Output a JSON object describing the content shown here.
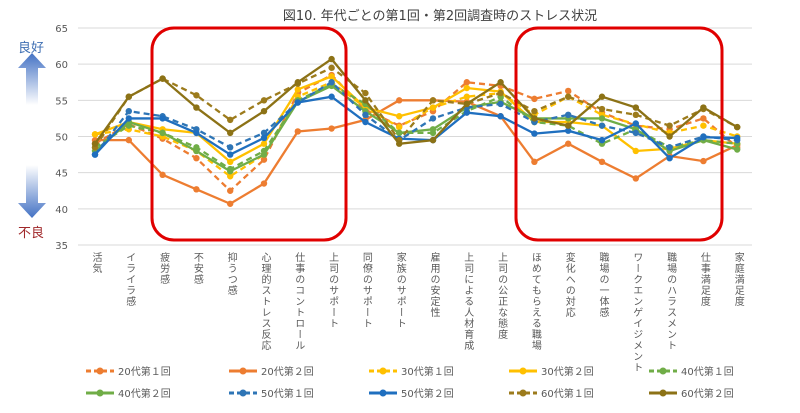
{
  "chart_data": {
    "type": "line",
    "title": "図10. 年代ごとの第1回・第2回調査時のストレス状況",
    "xlabel": "",
    "ylabel": "",
    "ylim": [
      35,
      65
    ],
    "yticks": [
      35,
      40,
      45,
      50,
      55,
      60,
      65
    ],
    "grid": true,
    "legend_position": "bottom",
    "annotations": {
      "good": "良好",
      "bad": "不良"
    },
    "categories": [
      "活気",
      "イライラ感",
      "疲労感",
      "不安感",
      "抑うつ感",
      "心理的ストレス反応",
      "仕事のコントロール",
      "上司のサポート",
      "同僚のサポート",
      "家族のサポート",
      "雇用の安定性",
      "上司による人材育成",
      "上司の公正な態度",
      "ほめてもらえる職場",
      "変化への対応",
      "職場の一体感",
      "ワークエンゲイジメント",
      "職場のハラスメント",
      "仕事満足度",
      "家庭満足度"
    ],
    "series": [
      {
        "name": "20代第１回",
        "color": "#ed7d31",
        "dashed": true,
        "values": [
          49,
          51.7,
          49.7,
          47,
          42.5,
          46.8,
          56,
          58.5,
          53.7,
          51.5,
          53.5,
          57.5,
          57,
          55.2,
          56.3,
          53.3,
          51.5,
          51,
          52.5,
          48.5
        ]
      },
      {
        "name": "20代第２回",
        "color": "#ed7d31",
        "dashed": false,
        "values": [
          49.5,
          49.5,
          44.7,
          42.7,
          40.7,
          43.5,
          50.7,
          51.1,
          52.3,
          55,
          55,
          54.8,
          52.8,
          46.5,
          49,
          46.5,
          44.2,
          47.3,
          46.6,
          48.8
        ]
      },
      {
        "name": "30代第１回",
        "color": "#ffc000",
        "dashed": true,
        "values": [
          50.3,
          51,
          50,
          48,
          44.5,
          47.5,
          55.5,
          57.5,
          54,
          51.3,
          54,
          55.5,
          56,
          53,
          55.5,
          53,
          51.7,
          50.5,
          51.5,
          50
        ]
      },
      {
        "name": "30代第２回",
        "color": "#ffc000",
        "dashed": false,
        "values": [
          50.3,
          52,
          51,
          50.5,
          46.5,
          49,
          56.5,
          58.3,
          54,
          52.8,
          54,
          56.7,
          56.2,
          52,
          52,
          51.5,
          48,
          48.3,
          49.5,
          49
        ]
      },
      {
        "name": "40代第１回",
        "color": "#70ad47",
        "dashed": true,
        "values": [
          48.5,
          51.5,
          50.5,
          48.5,
          45.5,
          48,
          55,
          57.2,
          54.5,
          50.5,
          50.5,
          53.5,
          55.5,
          52,
          51.5,
          49,
          51,
          48.5,
          49.5,
          49
        ]
      },
      {
        "name": "40代第２回",
        "color": "#70ad47",
        "dashed": false,
        "values": [
          48,
          52,
          50.5,
          48,
          45.2,
          47.5,
          54.8,
          57,
          53.5,
          50.5,
          51,
          54,
          54.8,
          52.5,
          52.5,
          52.5,
          51,
          48,
          49.5,
          48.2
        ]
      },
      {
        "name": "50代第１回",
        "color": "#2e75b6",
        "dashed": true,
        "values": [
          47.5,
          53.5,
          52.8,
          51,
          48.5,
          50.5,
          54.7,
          57.5,
          53,
          49.5,
          52.5,
          54,
          54.5,
          52,
          53,
          51.5,
          50.5,
          48.5,
          50,
          49.5
        ]
      },
      {
        "name": "50代第２回",
        "color": "#1f6fbf",
        "dashed": false,
        "values": [
          47.5,
          52.5,
          52.5,
          50.5,
          47.5,
          49.8,
          54.7,
          55.5,
          52,
          49.7,
          49.5,
          53.3,
          52.8,
          50.4,
          50.8,
          49.5,
          51.8,
          47,
          49.9,
          49.8
        ]
      },
      {
        "name": "60代第１回",
        "color": "#9c7b1c",
        "dashed": true,
        "values": [
          48.5,
          55.5,
          58,
          55.7,
          52.3,
          55,
          57.3,
          59.5,
          56,
          49.5,
          55,
          54.5,
          56,
          53.5,
          55.5,
          53.8,
          53,
          51.5,
          53.8,
          51.3
        ]
      },
      {
        "name": "60代第２回",
        "color": "#8c7216",
        "dashed": false,
        "values": [
          49,
          55.5,
          58,
          54,
          50.5,
          53.5,
          57.5,
          60.7,
          55,
          49,
          49.5,
          54.5,
          57.5,
          52.5,
          51.5,
          55.5,
          54,
          50,
          54,
          51.3
        ]
      }
    ]
  }
}
